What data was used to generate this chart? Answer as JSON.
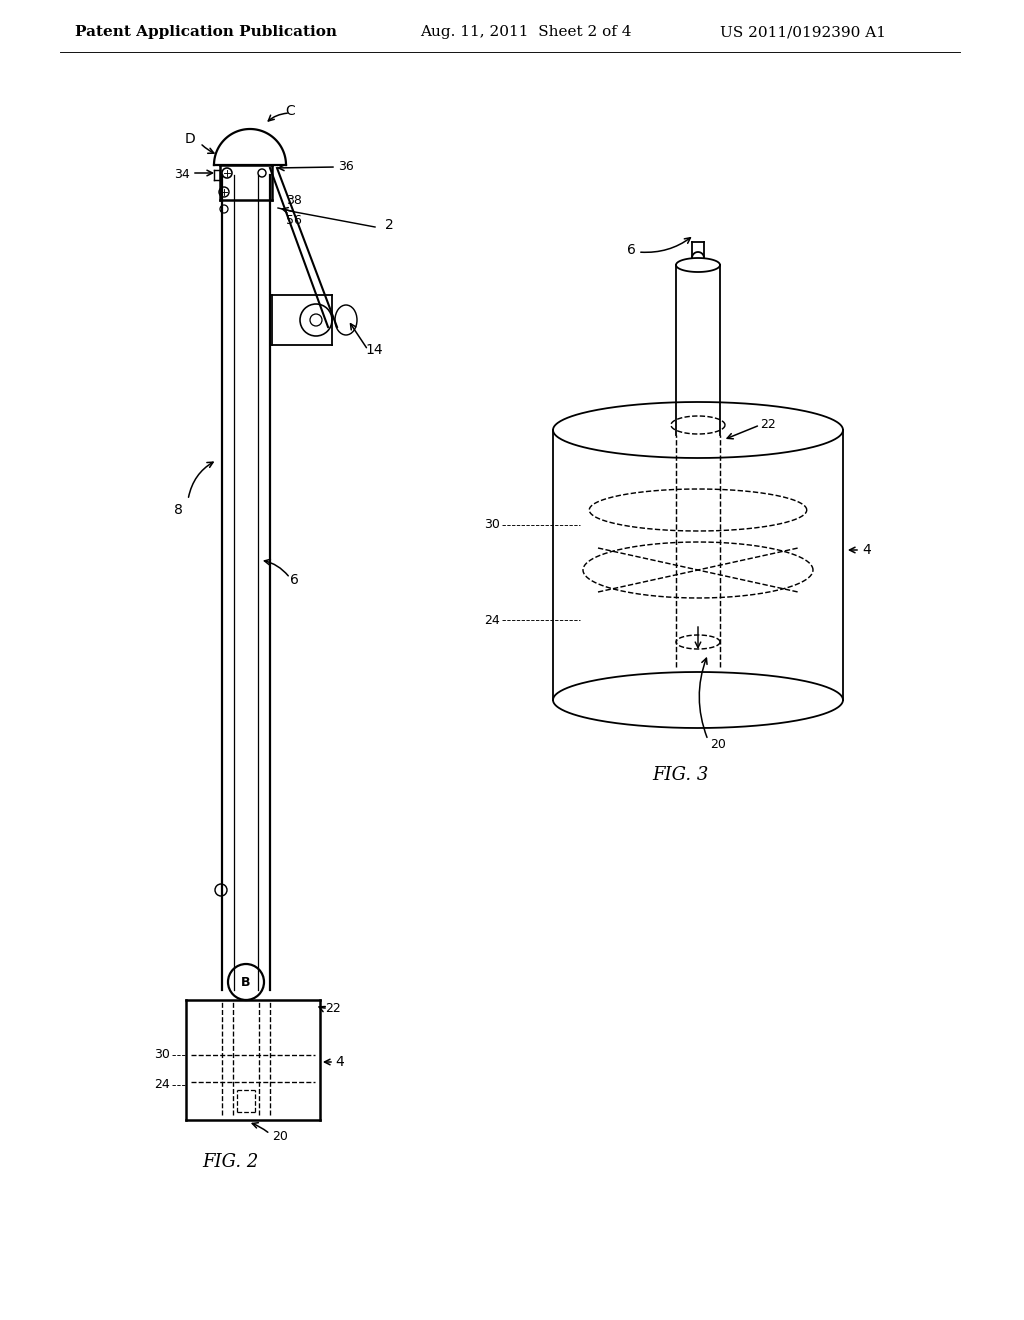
{
  "bg_color": "#ffffff",
  "line_color": "#000000",
  "line_width": 1.3,
  "header_left": "Patent Application Publication",
  "header_mid": "Aug. 11, 2011  Sheet 2 of 4",
  "header_right": "US 2011/0192390 A1"
}
